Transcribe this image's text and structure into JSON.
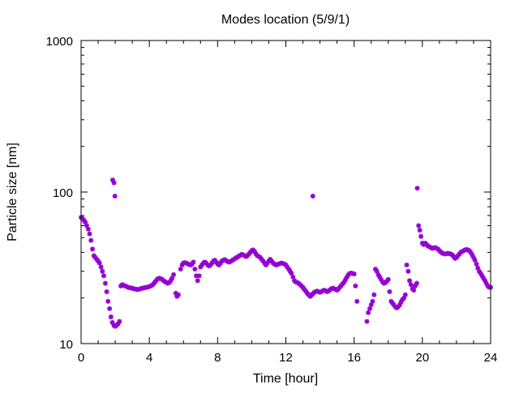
{
  "chart_data": {
    "type": "scatter",
    "title": "Modes location (5/9/1)",
    "xlabel": "Time [hour]",
    "ylabel": "Particle size [nm]",
    "xlim": [
      0,
      24
    ],
    "ylim": [
      10,
      1000
    ],
    "yscale": "log",
    "x_ticks": [
      "0",
      "4",
      "8",
      "12",
      "16",
      "20",
      "24"
    ],
    "y_ticks": [
      "10",
      "100",
      "1000"
    ],
    "grid": false,
    "marker_color": "#9400d3",
    "series": [
      {
        "points": [
          [
            0.0,
            68
          ],
          [
            0.08,
            67
          ],
          [
            0.17,
            65
          ],
          [
            0.25,
            63
          ],
          [
            0.33,
            60
          ],
          [
            0.42,
            57
          ],
          [
            0.5,
            53
          ],
          [
            0.58,
            48
          ],
          [
            0.67,
            42
          ],
          [
            0.75,
            38
          ],
          [
            0.83,
            37
          ],
          [
            0.92,
            36
          ],
          [
            1.0,
            35
          ],
          [
            1.08,
            34
          ],
          [
            1.17,
            32
          ],
          [
            1.25,
            30
          ],
          [
            1.33,
            28
          ],
          [
            1.42,
            25
          ],
          [
            1.5,
            22
          ],
          [
            1.58,
            19
          ],
          [
            1.67,
            17
          ],
          [
            1.75,
            15
          ],
          [
            1.83,
            13.8
          ],
          [
            1.92,
            13.2
          ],
          [
            2.0,
            13.0
          ],
          [
            2.08,
            13.2
          ],
          [
            2.17,
            13.5
          ],
          [
            2.25,
            14.0
          ],
          [
            1.85,
            120
          ],
          [
            1.93,
            115
          ],
          [
            1.98,
            94
          ],
          [
            2.33,
            24
          ],
          [
            2.42,
            24.5
          ],
          [
            2.5,
            24.2
          ],
          [
            2.58,
            24
          ],
          [
            2.67,
            23.8
          ],
          [
            2.75,
            23.5
          ],
          [
            2.83,
            23.4
          ],
          [
            2.92,
            23.3
          ],
          [
            3.0,
            23.2
          ],
          [
            3.08,
            23.0
          ],
          [
            3.17,
            22.9
          ],
          [
            3.25,
            22.8
          ],
          [
            3.33,
            22.7
          ],
          [
            3.42,
            22.9
          ],
          [
            3.5,
            23.0
          ],
          [
            3.58,
            23.2
          ],
          [
            3.67,
            23.3
          ],
          [
            3.75,
            23.4
          ],
          [
            3.83,
            23.5
          ],
          [
            3.92,
            23.6
          ],
          [
            4.0,
            23.8
          ],
          [
            4.08,
            24.0
          ],
          [
            4.17,
            24.3
          ],
          [
            4.25,
            24.8
          ],
          [
            4.33,
            25.5
          ],
          [
            4.42,
            26.2
          ],
          [
            4.5,
            26.8
          ],
          [
            4.58,
            27.0
          ],
          [
            4.67,
            26.8
          ],
          [
            4.75,
            26.5
          ],
          [
            4.83,
            26.0
          ],
          [
            4.92,
            25.6
          ],
          [
            5.0,
            25.3
          ],
          [
            5.08,
            25.0
          ],
          [
            5.17,
            25.3
          ],
          [
            5.25,
            26.0
          ],
          [
            5.33,
            27.0
          ],
          [
            5.42,
            28.5
          ],
          [
            5.55,
            21.5
          ],
          [
            5.62,
            20.5
          ],
          [
            5.7,
            21.0
          ],
          [
            5.83,
            31
          ],
          [
            5.92,
            33
          ],
          [
            6.0,
            34
          ],
          [
            6.08,
            34.2
          ],
          [
            6.17,
            34
          ],
          [
            6.25,
            33.6
          ],
          [
            6.33,
            33.2
          ],
          [
            6.42,
            33
          ],
          [
            6.5,
            33.5
          ],
          [
            6.58,
            34.5
          ],
          [
            6.67,
            31
          ],
          [
            6.75,
            28
          ],
          [
            6.83,
            26
          ],
          [
            6.92,
            28
          ],
          [
            7.0,
            32
          ],
          [
            7.08,
            33
          ],
          [
            7.17,
            34
          ],
          [
            7.25,
            34.5
          ],
          [
            7.33,
            34
          ],
          [
            7.42,
            33
          ],
          [
            7.5,
            32.5
          ],
          [
            7.58,
            33
          ],
          [
            7.67,
            34
          ],
          [
            7.75,
            35
          ],
          [
            7.83,
            35.5
          ],
          [
            7.92,
            34.5
          ],
          [
            8.0,
            33.5
          ],
          [
            8.08,
            33
          ],
          [
            8.17,
            34
          ],
          [
            8.25,
            35
          ],
          [
            8.33,
            35.5
          ],
          [
            8.42,
            35.8
          ],
          [
            8.5,
            35.2
          ],
          [
            8.58,
            34.8
          ],
          [
            8.67,
            34.5
          ],
          [
            8.75,
            34.8
          ],
          [
            8.83,
            35.2
          ],
          [
            8.92,
            35.8
          ],
          [
            9.0,
            36.2
          ],
          [
            9.08,
            36.8
          ],
          [
            9.17,
            37.2
          ],
          [
            9.25,
            37.8
          ],
          [
            9.33,
            38.2
          ],
          [
            9.42,
            38.8
          ],
          [
            9.5,
            38.5
          ],
          [
            9.58,
            38
          ],
          [
            9.67,
            37.5
          ],
          [
            9.75,
            38
          ],
          [
            9.83,
            39
          ],
          [
            9.92,
            40
          ],
          [
            10.0,
            41
          ],
          [
            10.08,
            41.5
          ],
          [
            10.17,
            40.5
          ],
          [
            10.25,
            39
          ],
          [
            10.33,
            38
          ],
          [
            10.42,
            37.5
          ],
          [
            10.5,
            37
          ],
          [
            10.58,
            36
          ],
          [
            10.67,
            35
          ],
          [
            10.75,
            34
          ],
          [
            10.83,
            33
          ],
          [
            10.92,
            34
          ],
          [
            11.0,
            35
          ],
          [
            11.08,
            36
          ],
          [
            11.17,
            35
          ],
          [
            11.25,
            34
          ],
          [
            11.33,
            33.5
          ],
          [
            11.42,
            33
          ],
          [
            11.5,
            33.2
          ],
          [
            11.58,
            33.5
          ],
          [
            11.67,
            33.8
          ],
          [
            11.75,
            34
          ],
          [
            11.83,
            33.8
          ],
          [
            11.92,
            33.5
          ],
          [
            12.0,
            33
          ],
          [
            12.08,
            32
          ],
          [
            12.17,
            31
          ],
          [
            12.25,
            30
          ],
          [
            12.33,
            29
          ],
          [
            12.42,
            27.5
          ],
          [
            12.5,
            26
          ],
          [
            12.58,
            25.5
          ],
          [
            12.67,
            25.3
          ],
          [
            12.75,
            25
          ],
          [
            12.83,
            24.5
          ],
          [
            12.92,
            24
          ],
          [
            13.0,
            23.5
          ],
          [
            13.08,
            22.8
          ],
          [
            13.17,
            22.2
          ],
          [
            13.25,
            21.5
          ],
          [
            13.33,
            21
          ],
          [
            13.42,
            20.5
          ],
          [
            13.5,
            20.8
          ],
          [
            13.58,
            21.3
          ],
          [
            13.67,
            21.8
          ],
          [
            13.75,
            22
          ],
          [
            13.83,
            22.2
          ],
          [
            13.92,
            22
          ],
          [
            14.0,
            21.8
          ],
          [
            14.08,
            22
          ],
          [
            14.17,
            22.3
          ],
          [
            14.25,
            22.5
          ],
          [
            14.33,
            22.3
          ],
          [
            14.42,
            22
          ],
          [
            14.5,
            22.2
          ],
          [
            14.58,
            22.6
          ],
          [
            14.67,
            23
          ],
          [
            14.75,
            23.2
          ],
          [
            14.83,
            23
          ],
          [
            14.92,
            22.8
          ],
          [
            15.0,
            22.5
          ],
          [
            15.08,
            23
          ],
          [
            15.17,
            23.6
          ],
          [
            15.25,
            24.2
          ],
          [
            15.33,
            24.8
          ],
          [
            15.42,
            25.5
          ],
          [
            15.5,
            26.5
          ],
          [
            15.58,
            27.5
          ],
          [
            15.67,
            28.5
          ],
          [
            15.75,
            29
          ],
          [
            15.83,
            29.2
          ],
          [
            15.92,
            29
          ],
          [
            16.0,
            28.8
          ],
          [
            16.08,
            24
          ],
          [
            16.17,
            19
          ],
          [
            13.58,
            94
          ],
          [
            16.75,
            14
          ],
          [
            16.83,
            16
          ],
          [
            16.92,
            17
          ],
          [
            17.0,
            18
          ],
          [
            17.08,
            19
          ],
          [
            17.17,
            21
          ],
          [
            17.25,
            31
          ],
          [
            17.33,
            30
          ],
          [
            17.42,
            28.5
          ],
          [
            17.5,
            27.5
          ],
          [
            17.58,
            26.5
          ],
          [
            17.67,
            25.5
          ],
          [
            17.75,
            25
          ],
          [
            17.83,
            25.2
          ],
          [
            17.92,
            25.8
          ],
          [
            18.0,
            26.5
          ],
          [
            18.08,
            22
          ],
          [
            18.17,
            19
          ],
          [
            18.25,
            18.5
          ],
          [
            18.33,
            18
          ],
          [
            18.42,
            17.5
          ],
          [
            18.5,
            17.2
          ],
          [
            18.58,
            17.5
          ],
          [
            18.67,
            18
          ],
          [
            18.75,
            18.8
          ],
          [
            18.83,
            19.5
          ],
          [
            18.92,
            20
          ],
          [
            19.0,
            21
          ],
          [
            19.08,
            33
          ],
          [
            19.17,
            30
          ],
          [
            19.25,
            26
          ],
          [
            19.33,
            24.5
          ],
          [
            19.42,
            23
          ],
          [
            19.5,
            22.5
          ],
          [
            19.58,
            24
          ],
          [
            19.67,
            25
          ],
          [
            19.7,
            106
          ],
          [
            19.78,
            60
          ],
          [
            19.85,
            56
          ],
          [
            19.92,
            51
          ],
          [
            20.0,
            46
          ],
          [
            20.08,
            45
          ],
          [
            20.17,
            46
          ],
          [
            20.25,
            45
          ],
          [
            20.33,
            44
          ],
          [
            20.42,
            43.5
          ],
          [
            20.5,
            43
          ],
          [
            20.58,
            42.5
          ],
          [
            20.67,
            42.8
          ],
          [
            20.75,
            43
          ],
          [
            20.83,
            42.5
          ],
          [
            20.92,
            42
          ],
          [
            21.0,
            41
          ],
          [
            21.08,
            40.2
          ],
          [
            21.17,
            39.5
          ],
          [
            21.25,
            39.2
          ],
          [
            21.33,
            39
          ],
          [
            21.42,
            39.2
          ],
          [
            21.5,
            39.4
          ],
          [
            21.58,
            39.2
          ],
          [
            21.67,
            39
          ],
          [
            21.75,
            38.5
          ],
          [
            21.83,
            37.5
          ],
          [
            21.92,
            36.5
          ],
          [
            22.0,
            37
          ],
          [
            22.08,
            38
          ],
          [
            22.17,
            39
          ],
          [
            22.25,
            40
          ],
          [
            22.33,
            40.5
          ],
          [
            22.42,
            41
          ],
          [
            22.5,
            41.5
          ],
          [
            22.58,
            41.8
          ],
          [
            22.67,
            41.5
          ],
          [
            22.75,
            41
          ],
          [
            22.83,
            40
          ],
          [
            22.92,
            38.5
          ],
          [
            23.0,
            37
          ],
          [
            23.08,
            35.5
          ],
          [
            23.17,
            33.5
          ],
          [
            23.25,
            31.5
          ],
          [
            23.33,
            30
          ],
          [
            23.42,
            29
          ],
          [
            23.5,
            28
          ],
          [
            23.58,
            27
          ],
          [
            23.67,
            26
          ],
          [
            23.75,
            25
          ],
          [
            23.83,
            24
          ],
          [
            23.92,
            23.5
          ],
          [
            24.0,
            23.5
          ]
        ]
      }
    ]
  }
}
